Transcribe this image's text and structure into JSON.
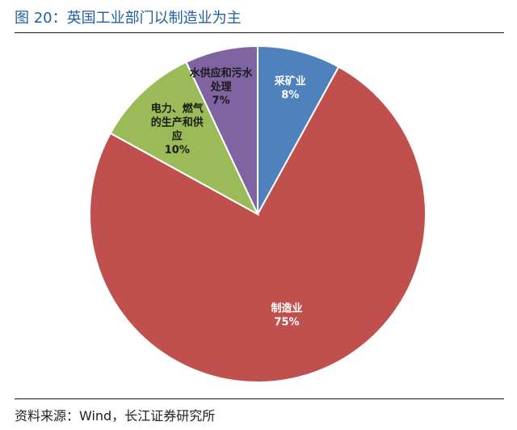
{
  "figure": {
    "title": "图 20：英国工业部门以制造业为主",
    "source": "资料来源：Wind，长江证券研究所"
  },
  "chart_data": {
    "type": "pie",
    "title": "",
    "slices": [
      {
        "label": "采矿业",
        "value": 8,
        "value_label": "8%",
        "color": "#4f81bd"
      },
      {
        "label": "制造业",
        "value": 75,
        "value_label": "75%",
        "color": "#c0504d"
      },
      {
        "label": "电力、燃气的生产和供应",
        "value": 10,
        "value_label": "10%",
        "color": "#9bbb59"
      },
      {
        "label": "水供应和污水处理",
        "value": 7,
        "value_label": "7%",
        "color": "#8064a2"
      }
    ],
    "start": "12 o'clock",
    "direction": "clockwise",
    "legend": "none",
    "data_labels": "inside"
  }
}
